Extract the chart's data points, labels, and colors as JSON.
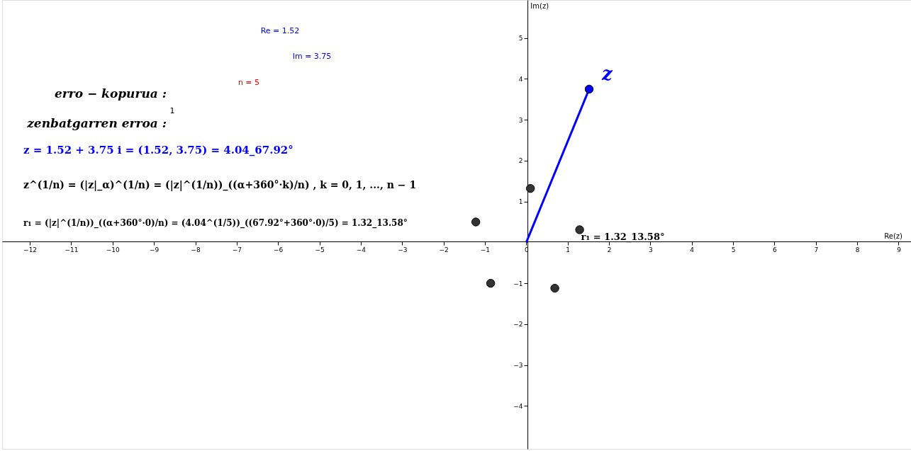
{
  "chart_data": {
    "type": "scatter",
    "xlabel": "Re(z)",
    "ylabel": "Im(z)",
    "xlim": [
      -12.67,
      9.3
    ],
    "ylim": [
      -5.05,
      5.93
    ],
    "xticks": [
      -12,
      -11,
      -10,
      -9,
      -8,
      -7,
      -6,
      -5,
      -4,
      -3,
      -2,
      -1,
      0,
      1,
      2,
      3,
      4,
      5,
      6,
      7,
      8,
      9
    ],
    "yticks": [
      -4,
      -3,
      -2,
      -1,
      1,
      2,
      3,
      4,
      5
    ],
    "grid": false,
    "series": [
      {
        "color": "#333333",
        "marker": "circle",
        "x": [
          1.29,
          0.1,
          -1.22,
          -0.86,
          0.69
        ],
        "values": [
          0.31,
          1.32,
          0.5,
          -1.0,
          -1.12
        ]
      },
      {
        "type": "line",
        "marker": "none",
        "line_style": "solid",
        "color": "#0000ff",
        "x": [
          0,
          1.52
        ],
        "values": [
          0,
          3.75
        ]
      },
      {
        "color": "#0000ff",
        "marker": "circle",
        "x": [
          1.52
        ],
        "values": [
          3.75
        ]
      }
    ],
    "annotations": [
      "Re = 1.52",
      "Im = 3.75",
      "n = 5",
      "1",
      "erro − kopurua :",
      "zenbatgarren erroa :",
      "z = 1.52 + 3.75 i = (1.52, 3.75) = 4.04_67.92°",
      "z^(1/n) = (|z|_α)^(1/n) = (|z|^(1/n))_((α+360°·k)/n) , k = 0, 1, ..., n − 1",
      "r₁ = (|z|^(1/n))_((α+360°·0)/n) = (4.04^(1/5))_((67.92°+360°·0)/5) = 1.32_13.58°",
      {
        "text": "z",
        "x": 1.52,
        "y": 3.75
      },
      {
        "text": "r₁ = 1.32_13.58°",
        "x": 1.29,
        "y": 0.31
      }
    ]
  }
}
